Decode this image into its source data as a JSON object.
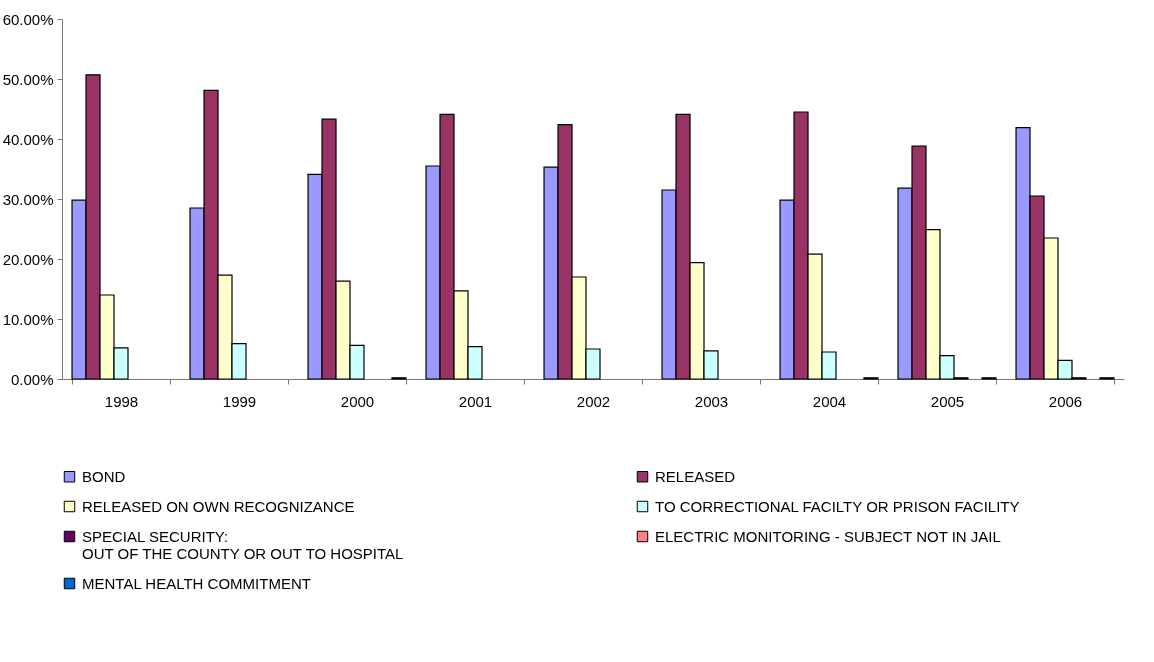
{
  "chart_data": {
    "type": "bar",
    "categories": [
      "1998",
      "1999",
      "2000",
      "2001",
      "2002",
      "2003",
      "2004",
      "2005",
      "2006"
    ],
    "series": [
      {
        "name": "BOND",
        "color": "#9999ff",
        "values": [
          29.8,
          28.5,
          34.1,
          35.5,
          35.3,
          31.5,
          29.8,
          31.8,
          41.9
        ]
      },
      {
        "name": "RELEASED",
        "color": "#993366",
        "values": [
          50.7,
          48.1,
          43.3,
          44.1,
          42.4,
          44.1,
          44.5,
          38.8,
          30.5
        ]
      },
      {
        "name": "RELEASED ON OWN RECOGNIZANCE",
        "color": "#ffffcc",
        "values": [
          14.0,
          17.3,
          16.3,
          14.7,
          17.0,
          19.4,
          20.8,
          24.9,
          23.5
        ]
      },
      {
        "name": "TO CORRECTIONAL FACILTY OR PRISON FACILITY",
        "color": "#ccffff",
        "values": [
          5.2,
          5.9,
          5.6,
          5.4,
          5.0,
          4.7,
          4.5,
          3.9,
          3.1
        ]
      },
      {
        "name": "SPECIAL SECURITY:\nOUT OF THE COUNTY OR OUT TO HOSPITAL",
        "color": "#660066",
        "values": [
          null,
          null,
          null,
          null,
          null,
          null,
          null,
          0.2,
          0.2
        ]
      },
      {
        "name": "ELECTRIC MONITORING - SUBJECT NOT IN JAIL",
        "color": "#ff8080",
        "values": [
          null,
          null,
          null,
          null,
          null,
          null,
          null,
          null,
          null
        ]
      },
      {
        "name": "MENTAL HEALTH COMMITMENT",
        "color": "#0066cc",
        "values": [
          null,
          null,
          0.2,
          null,
          null,
          null,
          0.2,
          0.2,
          0.2
        ]
      }
    ],
    "ylim": [
      0,
      60
    ],
    "yticks": [
      {
        "value": 0,
        "label": "0.00%"
      },
      {
        "value": 10,
        "label": "10.00%"
      },
      {
        "value": 20,
        "label": "20.00%"
      },
      {
        "value": 30,
        "label": "30.00%"
      },
      {
        "value": 40,
        "label": "40.00%"
      },
      {
        "value": 50,
        "label": "50.00%"
      },
      {
        "value": 60,
        "label": "60.00%"
      }
    ],
    "grid": false,
    "legend": "bottom"
  }
}
